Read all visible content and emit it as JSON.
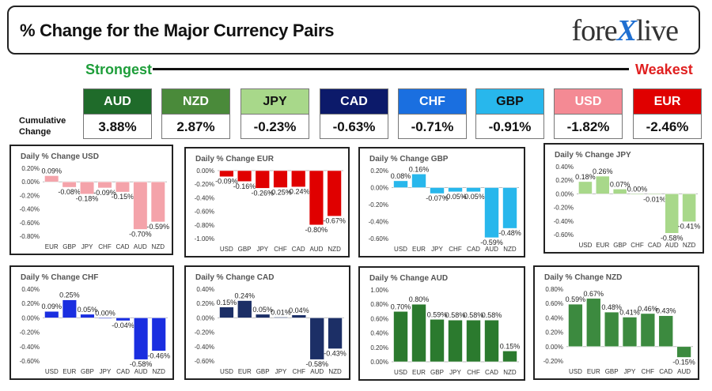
{
  "header": {
    "title": "% Change for the Major Currency Pairs",
    "logo_left": "fore",
    "logo_x": "X",
    "logo_right": "live"
  },
  "strength": {
    "strongest": "Strongest",
    "weakest": "Weakest"
  },
  "cumulative": {
    "label": "Cumulative Change",
    "items": [
      {
        "code": "AUD",
        "value": "3.88%",
        "color": "#1f6b2a",
        "text_color": "#ffffff"
      },
      {
        "code": "NZD",
        "value": "2.87%",
        "color": "#4a8a3a",
        "text_color": "#ffffff"
      },
      {
        "code": "JPY",
        "value": "-0.23%",
        "color": "#a8d88a",
        "text_color": "#111111"
      },
      {
        "code": "CAD",
        "value": "-0.63%",
        "color": "#0c1a6a",
        "text_color": "#ffffff"
      },
      {
        "code": "CHF",
        "value": "-0.71%",
        "color": "#1a6fe0",
        "text_color": "#ffffff"
      },
      {
        "code": "GBP",
        "value": "-0.91%",
        "color": "#28b7ec",
        "text_color": "#111111"
      },
      {
        "code": "USD",
        "value": "-1.82%",
        "color": "#f48a94",
        "text_color": "#ffffff"
      },
      {
        "code": "EUR",
        "value": "-2.46%",
        "color": "#e00000",
        "text_color": "#ffffff"
      }
    ]
  },
  "chart_data": [
    {
      "type": "bar",
      "title": "Daily % Change USD",
      "color": "#f4a3aa",
      "categories": [
        "EUR",
        "GBP",
        "JPY",
        "CHF",
        "CAD",
        "AUD",
        "NZD"
      ],
      "values": [
        0.09,
        -0.08,
        -0.18,
        -0.09,
        -0.15,
        -0.7,
        -0.59
      ],
      "labels": [
        "0.09%",
        "-0.08%",
        "-0.18%",
        "-0.09%",
        "-0.15%",
        "-0.70%",
        "-0.59%"
      ],
      "ylim": [
        -0.8,
        0.2
      ],
      "yticks": [
        0.2,
        0.0,
        -0.2,
        -0.4,
        -0.6,
        -0.8
      ],
      "ytick_labels": [
        "0.20%",
        "0.00%",
        "-0.20%",
        "-0.40%",
        "-0.60%",
        "-0.80%"
      ]
    },
    {
      "type": "bar",
      "title": "Daily % Change EUR",
      "color": "#e00000",
      "categories": [
        "USD",
        "GBP",
        "JPY",
        "CHF",
        "CAD",
        "AUD",
        "NZD"
      ],
      "values": [
        -0.09,
        -0.16,
        -0.26,
        -0.25,
        -0.24,
        -0.8,
        -0.67
      ],
      "labels": [
        "-0.09%",
        "-0.16%",
        "-0.26%",
        "-0.25%",
        "-0.24%",
        "-0.80%",
        "-0.67%"
      ],
      "ylim": [
        -1.0,
        0.0
      ],
      "yticks": [
        0.0,
        -0.2,
        -0.4,
        -0.6,
        -0.8,
        -1.0
      ],
      "ytick_labels": [
        "0.00%",
        "-0.20%",
        "-0.40%",
        "-0.60%",
        "-0.80%",
        "-1.00%"
      ]
    },
    {
      "type": "bar",
      "title": "Daily % Change GBP",
      "color": "#28b7ec",
      "categories": [
        "USD",
        "EUR",
        "JPY",
        "CHF",
        "CAD",
        "AUD",
        "NZD"
      ],
      "values": [
        0.08,
        0.16,
        -0.07,
        -0.05,
        -0.05,
        -0.59,
        -0.48
      ],
      "labels": [
        "0.08%",
        "0.16%",
        "-0.07%",
        "-0.05%",
        "-0.05%",
        "-0.59%",
        "-0.48%"
      ],
      "ylim": [
        -0.6,
        0.2
      ],
      "yticks": [
        0.2,
        0.0,
        -0.2,
        -0.4,
        -0.6
      ],
      "ytick_labels": [
        "0.20%",
        "0.00%",
        "-0.20%",
        "-0.40%",
        "-0.60%"
      ]
    },
    {
      "type": "bar",
      "title": "Daily % Change JPY",
      "color": "#a8d88a",
      "categories": [
        "USD",
        "EUR",
        "GBP",
        "CHF",
        "CAD",
        "AUD",
        "NZD"
      ],
      "values": [
        0.18,
        0.26,
        0.07,
        0.0,
        -0.01,
        -0.58,
        -0.41
      ],
      "labels": [
        "0.18%",
        "0.26%",
        "0.07%",
        "0.00%",
        "-0.01%",
        "-0.58%",
        "-0.41%"
      ],
      "ylim": [
        -0.6,
        0.4
      ],
      "yticks": [
        0.4,
        0.2,
        0.0,
        -0.2,
        -0.4,
        -0.6
      ],
      "ytick_labels": [
        "0.40%",
        "0.20%",
        "0.00%",
        "-0.20%",
        "-0.40%",
        "-0.60%"
      ]
    },
    {
      "type": "bar",
      "title": "Daily % Change CHF",
      "color": "#1a2ee0",
      "categories": [
        "USD",
        "EUR",
        "GBP",
        "JPY",
        "CAD",
        "AUD",
        "NZD"
      ],
      "values": [
        0.09,
        0.25,
        0.05,
        0.0,
        -0.04,
        -0.58,
        -0.46
      ],
      "labels": [
        "0.09%",
        "0.25%",
        "0.05%",
        "0.00%",
        "-0.04%",
        "-0.58%",
        "-0.46%"
      ],
      "ylim": [
        -0.6,
        0.4
      ],
      "yticks": [
        0.4,
        0.2,
        0.0,
        -0.2,
        -0.4,
        -0.6
      ],
      "ytick_labels": [
        "0.40%",
        "0.20%",
        "0.00%",
        "-0.20%",
        "-0.40%",
        "-0.60%"
      ]
    },
    {
      "type": "bar",
      "title": "Daily % Change CAD",
      "color": "#1c2f66",
      "categories": [
        "USD",
        "EUR",
        "GBP",
        "JPY",
        "CHF",
        "AUD",
        "NZD"
      ],
      "values": [
        0.15,
        0.24,
        0.05,
        0.01,
        0.04,
        -0.58,
        -0.43
      ],
      "labels": [
        "0.15%",
        "0.24%",
        "0.05%",
        "0.01%",
        "0.04%",
        "-0.58%",
        "-0.43%"
      ],
      "ylim": [
        -0.6,
        0.4
      ],
      "yticks": [
        0.4,
        0.2,
        0.0,
        -0.2,
        -0.4,
        -0.6
      ],
      "ytick_labels": [
        "0.40%",
        "0.20%",
        "0.00%",
        "-0.20%",
        "-0.40%",
        "-0.60%"
      ]
    },
    {
      "type": "bar",
      "title": "Daily % Change AUD",
      "color": "#2b7a2e",
      "categories": [
        "USD",
        "EUR",
        "GBP",
        "JPY",
        "CHF",
        "CAD",
        "NZD"
      ],
      "values": [
        0.7,
        0.8,
        0.59,
        0.58,
        0.58,
        0.58,
        0.15
      ],
      "labels": [
        "0.70%",
        "0.80%",
        "0.59%",
        "0.58%",
        "0.58%",
        "0.58%",
        "0.15%"
      ],
      "ylim": [
        0.0,
        1.0
      ],
      "yticks": [
        1.0,
        0.8,
        0.6,
        0.4,
        0.2,
        0.0
      ],
      "ytick_labels": [
        "1.00%",
        "0.80%",
        "0.60%",
        "0.40%",
        "0.20%",
        "0.00%"
      ]
    },
    {
      "type": "bar",
      "title": "Daily % Change NZD",
      "color": "#3c8a3f",
      "categories": [
        "USD",
        "EUR",
        "GBP",
        "JPY",
        "CHF",
        "CAD",
        "AUD"
      ],
      "values": [
        0.59,
        0.67,
        0.48,
        0.41,
        0.46,
        0.43,
        -0.15
      ],
      "labels": [
        "0.59%",
        "0.67%",
        "0.48%",
        "0.41%",
        "0.46%",
        "0.43%",
        "-0.15%"
      ],
      "ylim": [
        -0.2,
        0.8
      ],
      "yticks": [
        0.8,
        0.6,
        0.4,
        0.2,
        0.0,
        -0.2
      ],
      "ytick_labels": [
        "0.80%",
        "0.60%",
        "0.40%",
        "0.20%",
        "0.00%",
        "-0.20%"
      ]
    }
  ]
}
